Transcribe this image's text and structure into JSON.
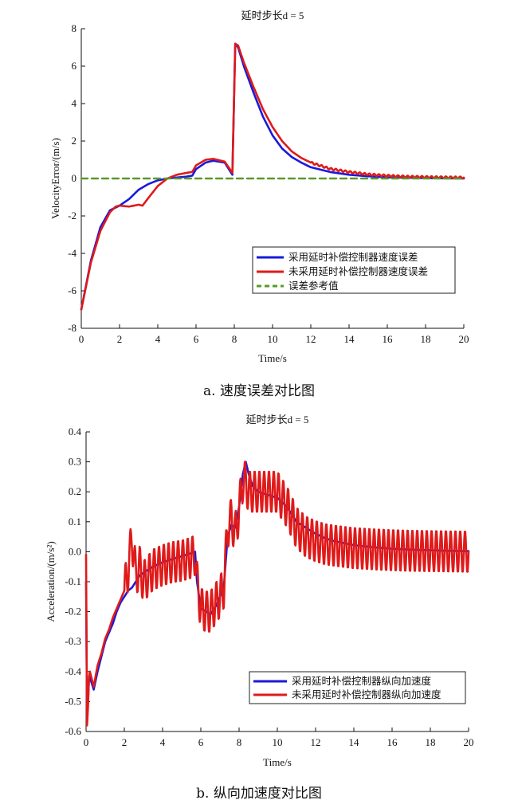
{
  "chart_data": [
    {
      "type": "line",
      "title": "延时步长d = 5",
      "xlabel": "Time/s",
      "ylabel": "VelocityError/(m/s)",
      "xlim": [
        0,
        20
      ],
      "ylim": [
        -8,
        8
      ],
      "xticks": [
        0,
        2,
        4,
        6,
        8,
        10,
        12,
        14,
        16,
        18,
        20
      ],
      "yticks": [
        -8,
        -6,
        -4,
        -2,
        0,
        2,
        4,
        6,
        8
      ],
      "legend_position": "lower-right",
      "caption": "a. 速度误差对比图",
      "series": [
        {
          "name": "采用延时补偿控制器速度误差",
          "color": "#1a1adb",
          "x": [
            0,
            0.5,
            1,
            1.5,
            2,
            2.5,
            3,
            3.5,
            4,
            4.5,
            5,
            5.5,
            5.8,
            6,
            6.5,
            6.9,
            7.5,
            7.9,
            8.05,
            8.2,
            8.5,
            9,
            9.5,
            10,
            10.5,
            11,
            11.5,
            12,
            13,
            14,
            15,
            16,
            17,
            18,
            19,
            20
          ],
          "y": [
            -7.0,
            -4.4,
            -2.6,
            -1.7,
            -1.45,
            -1.1,
            -0.6,
            -0.3,
            -0.1,
            0.0,
            0.05,
            0.1,
            0.15,
            0.5,
            0.85,
            0.95,
            0.85,
            0.2,
            7.2,
            7.0,
            6.0,
            4.6,
            3.3,
            2.3,
            1.6,
            1.15,
            0.85,
            0.6,
            0.35,
            0.2,
            0.12,
            0.06,
            0.04,
            0.02,
            0.01,
            0.0
          ]
        },
        {
          "name": "未采用延时补偿控制器速度误差",
          "color": "#e01a1a",
          "x": [
            0,
            0.5,
            1,
            1.5,
            1.8,
            2,
            2.5,
            3,
            3.2,
            3.5,
            4,
            4.5,
            5,
            5.5,
            5.8,
            6,
            6.5,
            6.9,
            7.5,
            7.9,
            8.05,
            8.2,
            8.5,
            9,
            9.5,
            10,
            10.5,
            11,
            11.5,
            12,
            13,
            14,
            15,
            16,
            17,
            18,
            19,
            20
          ],
          "y": [
            -7.0,
            -4.5,
            -2.8,
            -1.8,
            -1.5,
            -1.45,
            -1.5,
            -1.4,
            -1.45,
            -1.05,
            -0.4,
            0.0,
            0.2,
            0.3,
            0.35,
            0.7,
            1.0,
            1.05,
            0.9,
            0.3,
            7.2,
            7.1,
            6.2,
            4.9,
            3.7,
            2.75,
            2.0,
            1.45,
            1.1,
            0.85,
            0.52,
            0.35,
            0.22,
            0.15,
            0.1,
            0.08,
            0.06,
            0.05
          ],
          "ripple": {
            "start": 12,
            "end": 20,
            "period": 0.25,
            "amplitude": 0.05
          }
        },
        {
          "name": "误差参考值",
          "color": "#5a9a2a",
          "style": "dashed",
          "x": [
            0,
            20
          ],
          "y": [
            0,
            0
          ]
        }
      ]
    },
    {
      "type": "line",
      "title": "延时步长d = 5",
      "xlabel": "Time/s",
      "ylabel": "Acceleration/(m/s²)",
      "xlim": [
        0,
        20
      ],
      "ylim": [
        -0.6,
        0.4
      ],
      "xticks": [
        0,
        2,
        4,
        6,
        8,
        10,
        12,
        14,
        16,
        18,
        20
      ],
      "yticks": [
        -0.6,
        -0.5,
        -0.4,
        -0.3,
        -0.2,
        -0.1,
        0.0,
        0.1,
        0.2,
        0.3,
        0.4
      ],
      "legend_position": "lower-right",
      "caption": "b. 纵向加速度对比图",
      "series": [
        {
          "name": "采用延时补偿控制器纵向加速度",
          "color": "#1a1adb",
          "x": [
            0,
            0.05,
            0.1,
            0.15,
            0.2,
            0.4,
            0.6,
            0.8,
            1.0,
            1.2,
            1.4,
            1.6,
            1.8,
            2.0,
            2.2,
            2.4,
            2.6,
            2.8,
            3.0,
            3.5,
            4.0,
            4.5,
            5.0,
            5.5,
            5.7,
            5.8,
            6.0,
            6.3,
            6.5,
            6.8,
            7.0,
            7.2,
            7.4,
            7.6,
            7.8,
            8.0,
            8.2,
            8.35,
            8.5,
            8.7,
            9.0,
            9.5,
            10.0,
            10.5,
            10.8,
            11.0,
            11.5,
            12.0,
            12.5,
            13.0,
            14.0,
            15.0,
            16.0,
            17.0,
            18.0,
            19.0,
            20.0
          ],
          "y": [
            -0.1,
            -0.55,
            -0.5,
            -0.43,
            -0.42,
            -0.46,
            -0.4,
            -0.35,
            -0.3,
            -0.27,
            -0.24,
            -0.2,
            -0.17,
            -0.15,
            -0.13,
            -0.12,
            -0.1,
            -0.08,
            -0.07,
            -0.05,
            -0.035,
            -0.025,
            -0.015,
            -0.005,
            0.0,
            -0.1,
            -0.19,
            -0.2,
            -0.21,
            -0.18,
            -0.15,
            -0.12,
            0.05,
            0.09,
            0.08,
            0.15,
            0.26,
            0.3,
            0.26,
            0.22,
            0.2,
            0.19,
            0.18,
            0.15,
            0.12,
            0.1,
            0.08,
            0.06,
            0.045,
            0.035,
            0.022,
            0.015,
            0.01,
            0.007,
            0.005,
            0.003,
            0.002
          ]
        },
        {
          "name": "未采用延时补偿控制器纵向加速度",
          "color": "#e01a1a",
          "x": [
            0,
            0.05,
            0.1,
            0.15,
            0.2,
            0.4,
            0.6,
            0.8,
            1.0,
            1.2,
            1.4,
            1.6,
            1.8,
            2.0,
            2.2,
            2.4,
            2.6,
            2.8,
            3.0,
            3.5,
            4.0,
            4.5,
            5.0,
            5.5,
            5.7,
            5.8,
            6.0,
            6.3,
            6.5,
            6.8,
            7.0,
            7.2,
            7.4,
            7.6,
            7.8,
            8.0,
            8.2,
            8.35,
            8.5,
            8.7,
            9.0,
            9.5,
            10.0,
            10.5,
            10.8,
            11.0,
            11.5,
            12.0,
            12.5,
            13.0,
            14.0,
            15.0,
            16.0,
            17.0,
            18.0,
            19.0,
            20.0
          ],
          "y": [
            -0.01,
            -0.58,
            -0.52,
            -0.42,
            -0.4,
            -0.45,
            -0.38,
            -0.34,
            -0.29,
            -0.26,
            -0.22,
            -0.19,
            -0.16,
            -0.13,
            -0.06,
            0.05,
            -0.08,
            -0.05,
            -0.1,
            -0.06,
            -0.045,
            -0.035,
            -0.03,
            -0.02,
            -0.01,
            -0.1,
            -0.19,
            -0.2,
            -0.2,
            -0.17,
            -0.15,
            -0.12,
            0.08,
            0.11,
            0.06,
            0.14,
            0.24,
            0.23,
            0.2,
            0.2,
            0.2,
            0.2,
            0.2,
            0.15,
            0.11,
            0.08,
            0.05,
            0.035,
            0.025,
            0.02,
            0.012,
            0.008,
            0.005,
            0.003,
            0.002,
            0.001,
            0.0
          ],
          "ripple": {
            "start": 2.0,
            "end": 20,
            "period": 0.25,
            "amplitude": 0.07
          }
        }
      ]
    }
  ]
}
